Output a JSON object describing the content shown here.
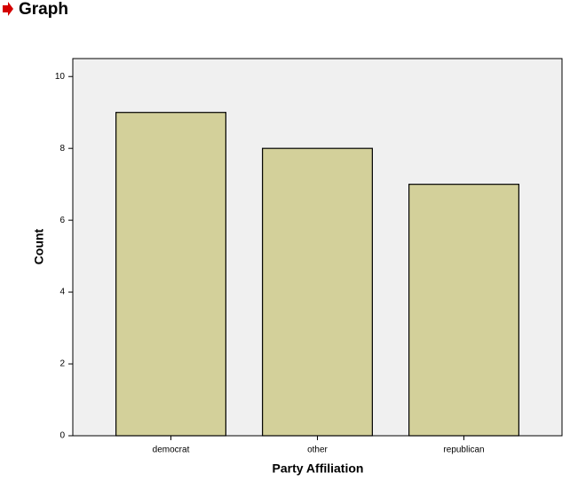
{
  "chart_data": {
    "type": "bar",
    "title": "Graph",
    "x_label": "Party Affiliation",
    "y_label": "Count",
    "categories": [
      "democrat",
      "other",
      "republican"
    ],
    "values": [
      9,
      8,
      7
    ],
    "color": "#d3d09a",
    "ylim": [
      0,
      10.5
    ],
    "yticks": [
      0,
      2,
      4,
      6,
      8,
      10
    ],
    "grid": false
  }
}
